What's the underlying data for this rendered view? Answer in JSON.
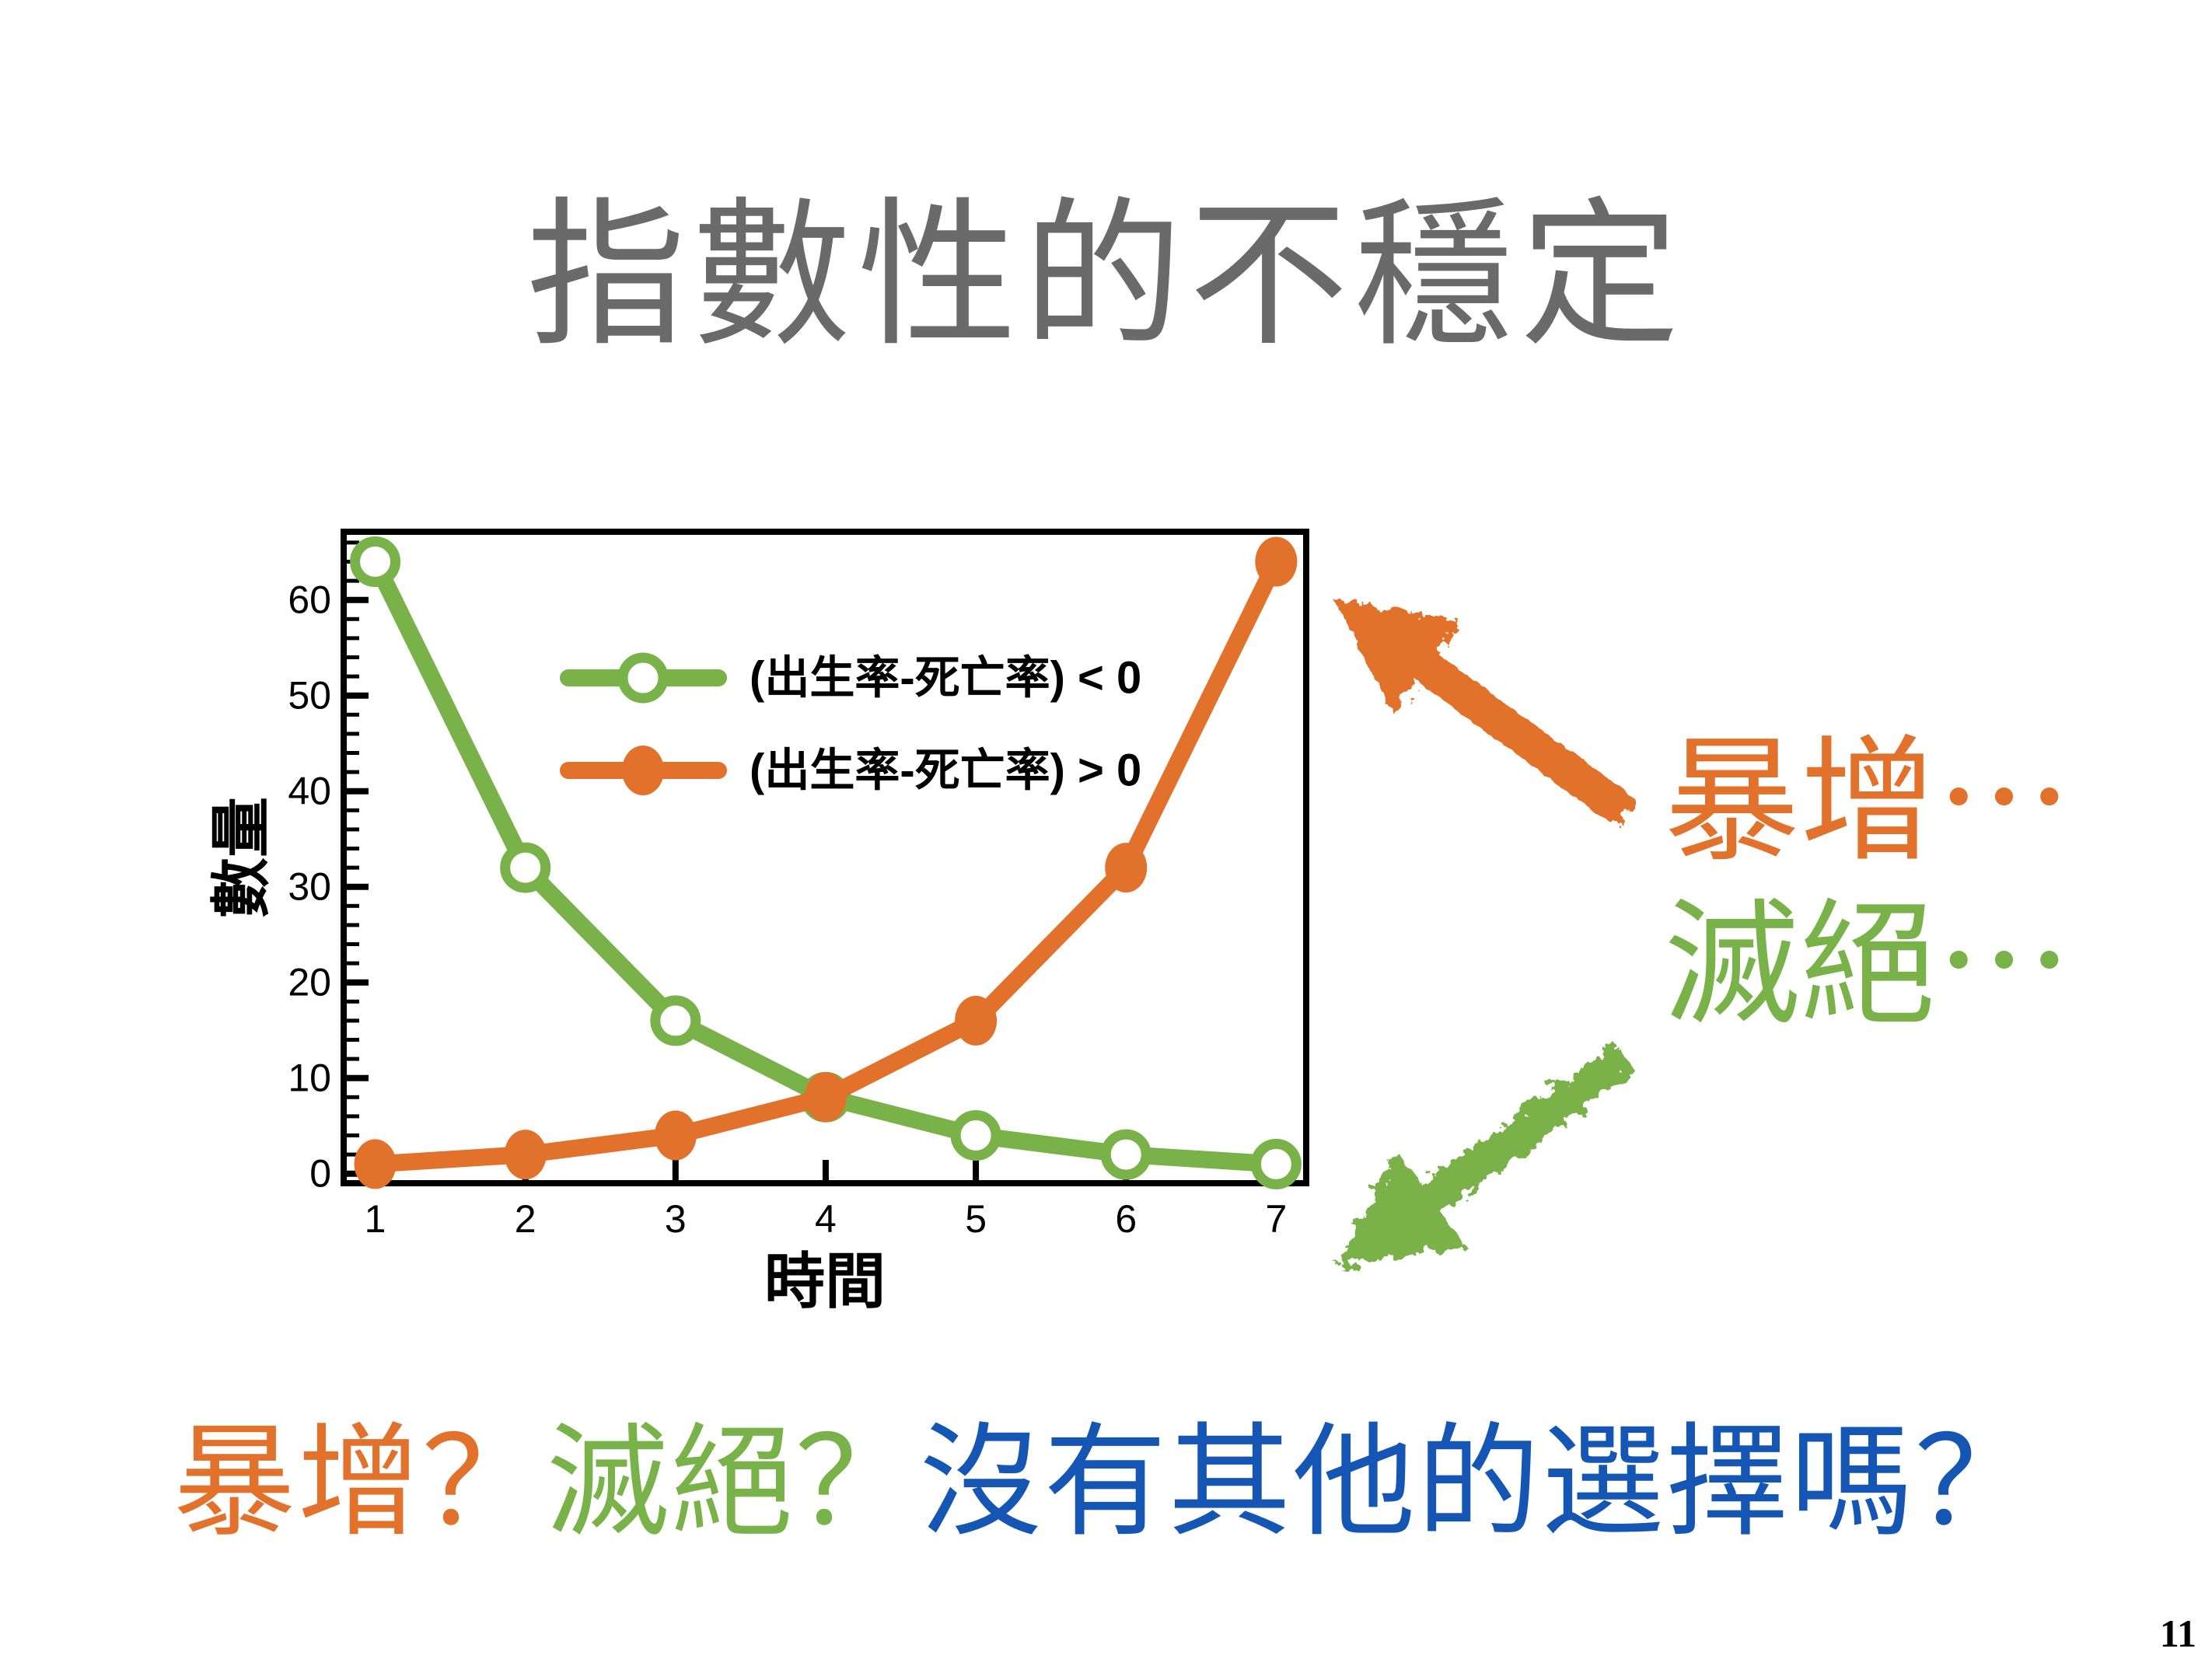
{
  "slide": {
    "title": "指數性的不穩定",
    "page_number": "11"
  },
  "annotations": {
    "surge_label": "暴增⋯",
    "extinction_label": "滅絕⋯"
  },
  "bottom_question": {
    "part1": "暴增？",
    "part2": "滅絕？",
    "part3": "沒有其他的選擇嗎？"
  },
  "colors": {
    "green": "#7ab24a",
    "orange": "#e2712b",
    "blue": "#1555b4",
    "gray": "#6a6a6a",
    "black": "#000000"
  },
  "chart_data": {
    "type": "line",
    "x": [
      1,
      2,
      3,
      4,
      5,
      6,
      7
    ],
    "series": [
      {
        "name": "(出生率-死亡率) < 0",
        "values": [
          64,
          32,
          16,
          8,
          4,
          2,
          1
        ],
        "color": "#7ab24a",
        "marker": "open-circle"
      },
      {
        "name": "(出生率-死亡率) > 0",
        "values": [
          1,
          2,
          4,
          8,
          16,
          32,
          64
        ],
        "color": "#e2712b",
        "marker": "filled-circle"
      }
    ],
    "xlabel": "時間",
    "ylabel": "數量",
    "xticks": [
      1,
      2,
      3,
      4,
      5,
      6,
      7
    ],
    "yticks": [
      0,
      10,
      20,
      30,
      40,
      50,
      60
    ],
    "y_minor_tick_step": 2,
    "xlim": [
      0.79,
      7.2
    ],
    "ylim": [
      0,
      67
    ],
    "grid": false,
    "legend_position": "upper-left-inside"
  }
}
